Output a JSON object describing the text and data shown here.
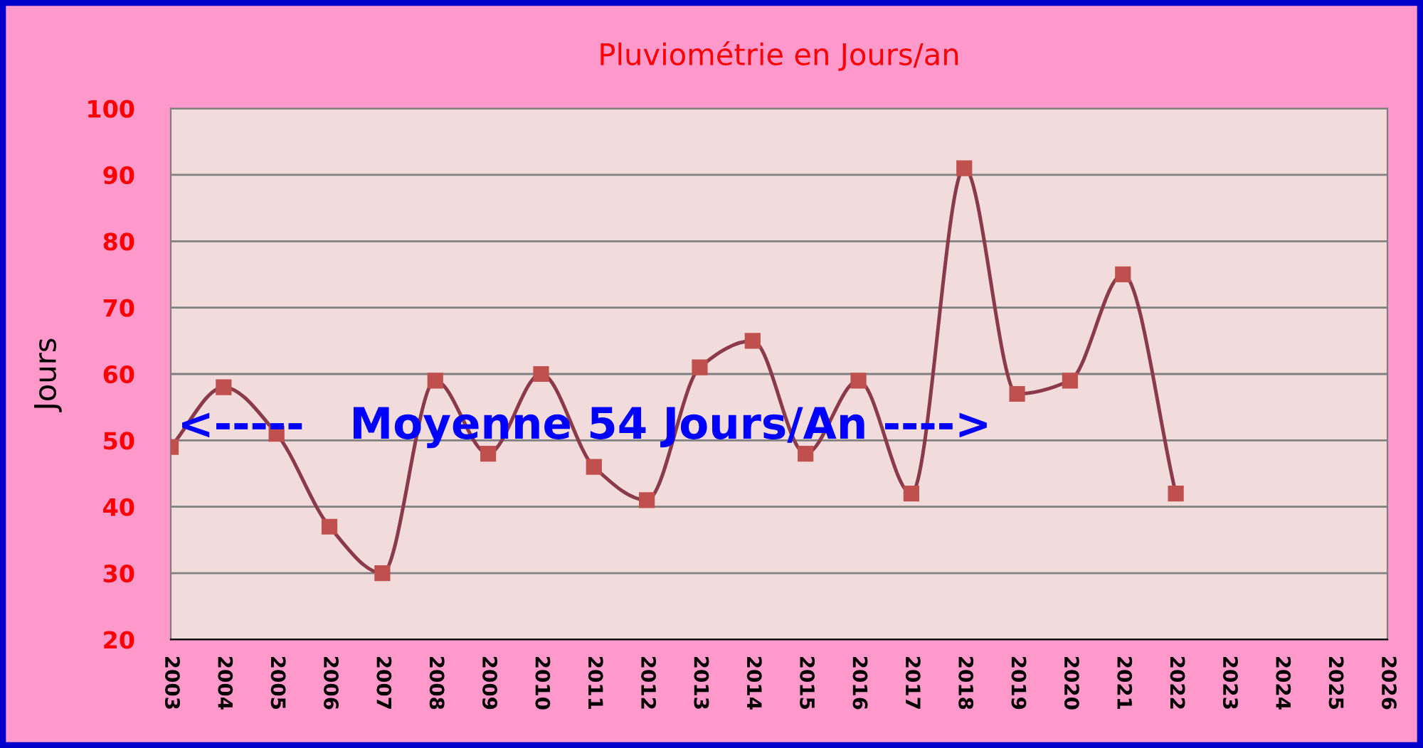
{
  "chart_data": {
    "type": "line",
    "title": "Pluviométrie en Jours/an",
    "ylabel": "Jours",
    "x": [
      2003,
      2004,
      2005,
      2006,
      2007,
      2008,
      2009,
      2010,
      2011,
      2012,
      2013,
      2014,
      2015,
      2016,
      2017,
      2018,
      2019,
      2020,
      2021,
      2022
    ],
    "series": [
      {
        "color": "#8b3a4a",
        "values": [
          49,
          58,
          51,
          37,
          30,
          59,
          48,
          60,
          46,
          41,
          61,
          65,
          48,
          59,
          42,
          91,
          57,
          59,
          75,
          42
        ]
      }
    ],
    "xlim": [
      2003,
      2026
    ],
    "xticks": [
      2003,
      2004,
      2005,
      2006,
      2007,
      2008,
      2009,
      2010,
      2011,
      2012,
      2013,
      2014,
      2015,
      2016,
      2017,
      2018,
      2019,
      2020,
      2021,
      2022,
      2023,
      2024,
      2025,
      2026
    ],
    "ylim": [
      20,
      100
    ],
    "yticks": [
      20,
      30,
      40,
      50,
      60,
      70,
      80,
      90,
      100
    ],
    "grid": "y",
    "marker": "square",
    "line_style": "solid",
    "annotations": [
      "<-----   Moyenne 54 Jours/An ---->"
    ]
  }
}
